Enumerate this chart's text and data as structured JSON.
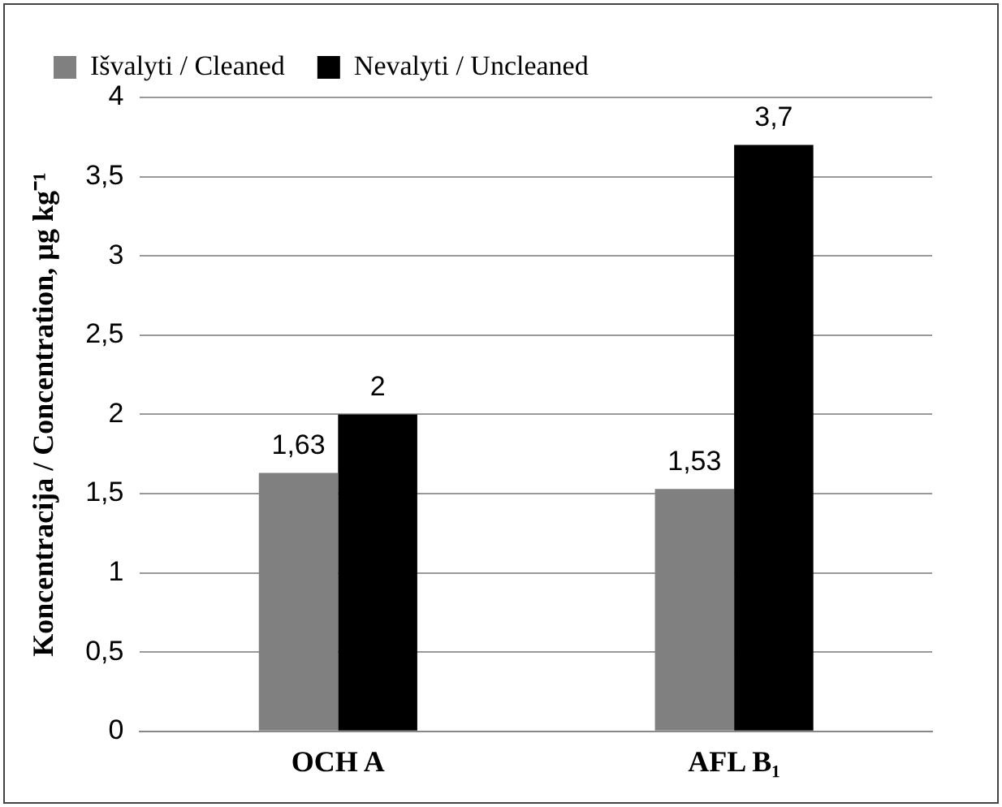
{
  "chart_data": {
    "type": "bar",
    "ylabel": "Koncentracija / Concentration, µg kg⁻¹",
    "categories": [
      "OCH A",
      "AFL B₁"
    ],
    "series": [
      {
        "name": "Išvalyti / Cleaned",
        "color": "#808080",
        "values": [
          1.63,
          1.53
        ],
        "value_labels": [
          "1,63",
          "1,53"
        ]
      },
      {
        "name": "Nevalyti / Uncleaned",
        "color": "#000000",
        "values": [
          2,
          3.7
        ],
        "value_labels": [
          "2",
          "3,7"
        ]
      }
    ],
    "ylim": [
      0,
      4
    ],
    "yticks": [
      0,
      {
        "value": 0.5,
        "label": "0,5"
      },
      1,
      {
        "value": 1.5,
        "label": "1,5"
      },
      2,
      {
        "value": 2.5,
        "label": "2,5"
      },
      3,
      {
        "value": 3.5,
        "label": "3,5"
      },
      4
    ],
    "grid": "y",
    "legend": "top left"
  }
}
